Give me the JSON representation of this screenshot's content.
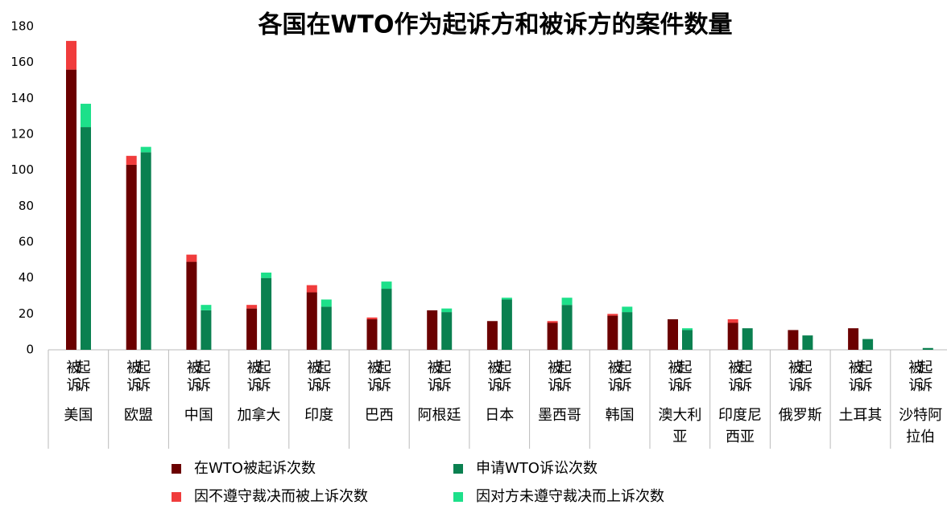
{
  "chart_data": {
    "type": "grouped_stacked_bar",
    "title": "各国在WTO作为起诉方和被诉方的案件数量",
    "categories": [
      "美国",
      "欧盟",
      "中国",
      "加拿大",
      "印度",
      "巴西",
      "阿根廷",
      "日本",
      "墨西哥",
      "韩国",
      "澳大利亚",
      "印度尼西亚",
      "俄罗斯",
      "土耳其",
      "沙特阿拉伯"
    ],
    "sub_labels": [
      "被诉",
      "起诉"
    ],
    "series": [
      {
        "name": "在WTO被起诉次数",
        "color": "#6b0000",
        "stack": 0,
        "values": [
          156,
          103,
          49,
          23,
          32,
          17,
          22,
          16,
          15,
          19,
          17,
          15,
          11,
          12,
          0
        ]
      },
      {
        "name": "因不遵守裁决而被上诉次数",
        "color": "#f03c3c",
        "stack": 0,
        "values": [
          16,
          5,
          4,
          2,
          4,
          1,
          0,
          0,
          1,
          1,
          0,
          2,
          0,
          0,
          0
        ]
      },
      {
        "name": "申请WTO诉讼次数",
        "color": "#0a8050",
        "stack": 1,
        "values": [
          124,
          110,
          22,
          40,
          24,
          34,
          21,
          28,
          25,
          21,
          11,
          12,
          8,
          6,
          1
        ]
      },
      {
        "name": "因对方未遵守裁决而上诉次数",
        "color": "#1de08a",
        "stack": 1,
        "values": [
          13,
          3,
          3,
          3,
          4,
          4,
          2,
          1,
          4,
          3,
          1,
          0,
          0,
          0,
          0
        ]
      }
    ],
    "ylim": [
      0,
      180
    ],
    "yticks": [
      0,
      20,
      40,
      60,
      80,
      100,
      120,
      140,
      160,
      180
    ],
    "grid": false
  }
}
